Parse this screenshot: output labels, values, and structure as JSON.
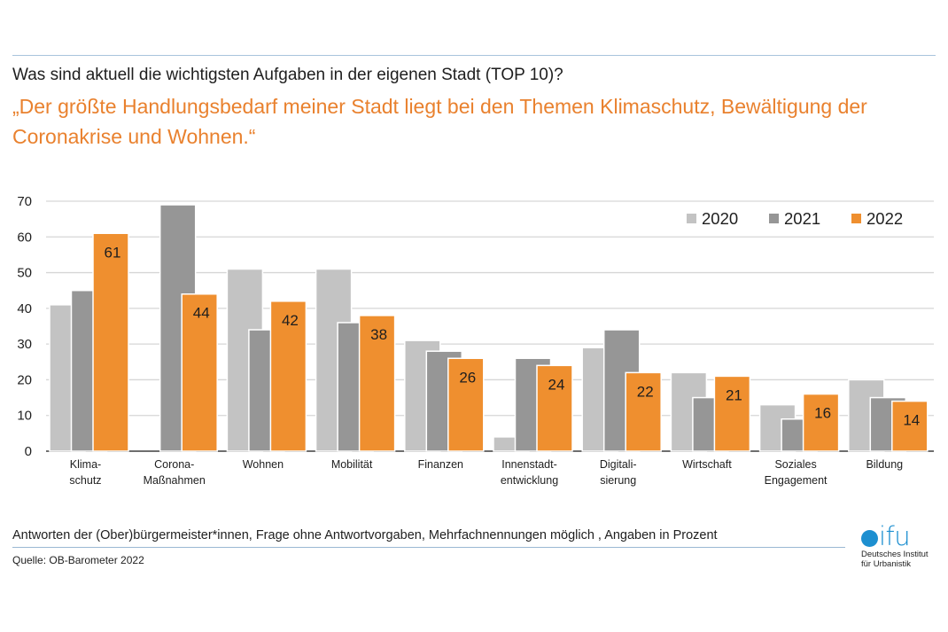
{
  "header": {
    "question": "Was sind aktuell die wichtigsten Aufgaben in der eigenen Stadt (TOP 10)?",
    "headline": "„Der größte Handlungsbedarf meiner Stadt liegt bei den Themen Klimaschutz, Bewältigung der Coronakrise und Wohnen.“"
  },
  "footer": {
    "note": "Antworten der (Ober)bürgermeister*innen, Frage ohne Antwortvorgaben, Mehrfachnennungen möglich , Angaben in Prozent",
    "source": "Quelle: OB-Barometer 2022"
  },
  "logo": {
    "word": "ifu",
    "line1": "Deutsches Institut",
    "line2": "für Urbanistik",
    "color": "#1d8fd0"
  },
  "chart_data": {
    "type": "bar",
    "title": "Was sind aktuell die wichtigsten Aufgaben in der eigenen Stadt (TOP 10)?",
    "xlabel": "",
    "ylabel": "",
    "ylim": [
      0,
      70
    ],
    "yticks": [
      0,
      10,
      20,
      30,
      40,
      50,
      60,
      70
    ],
    "grid": true,
    "legend_position": "top-right",
    "categories": [
      [
        "Klima-",
        "schutz"
      ],
      [
        "Corona-",
        "Maßnahmen"
      ],
      [
        "Wohnen"
      ],
      [
        "Mobilität"
      ],
      [
        "Finanzen"
      ],
      [
        "Innenstadt-",
        "entwicklung"
      ],
      [
        "Digitali-",
        "sierung"
      ],
      [
        "Wirtschaft"
      ],
      [
        "Soziales",
        "Engagement"
      ],
      [
        "Bildung"
      ]
    ],
    "series": [
      {
        "name": "2020",
        "color": "#c3c3c3",
        "values": [
          41,
          0,
          51,
          51,
          31,
          4,
          29,
          22,
          13,
          20
        ],
        "labeled": false
      },
      {
        "name": "2021",
        "color": "#969696",
        "values": [
          45,
          69,
          34,
          36,
          28,
          26,
          34,
          15,
          9,
          15
        ],
        "labeled": false
      },
      {
        "name": "2022",
        "color": "#ef8f2f",
        "values": [
          61,
          44,
          42,
          38,
          26,
          24,
          22,
          21,
          16,
          14
        ],
        "labeled": true
      }
    ]
  }
}
